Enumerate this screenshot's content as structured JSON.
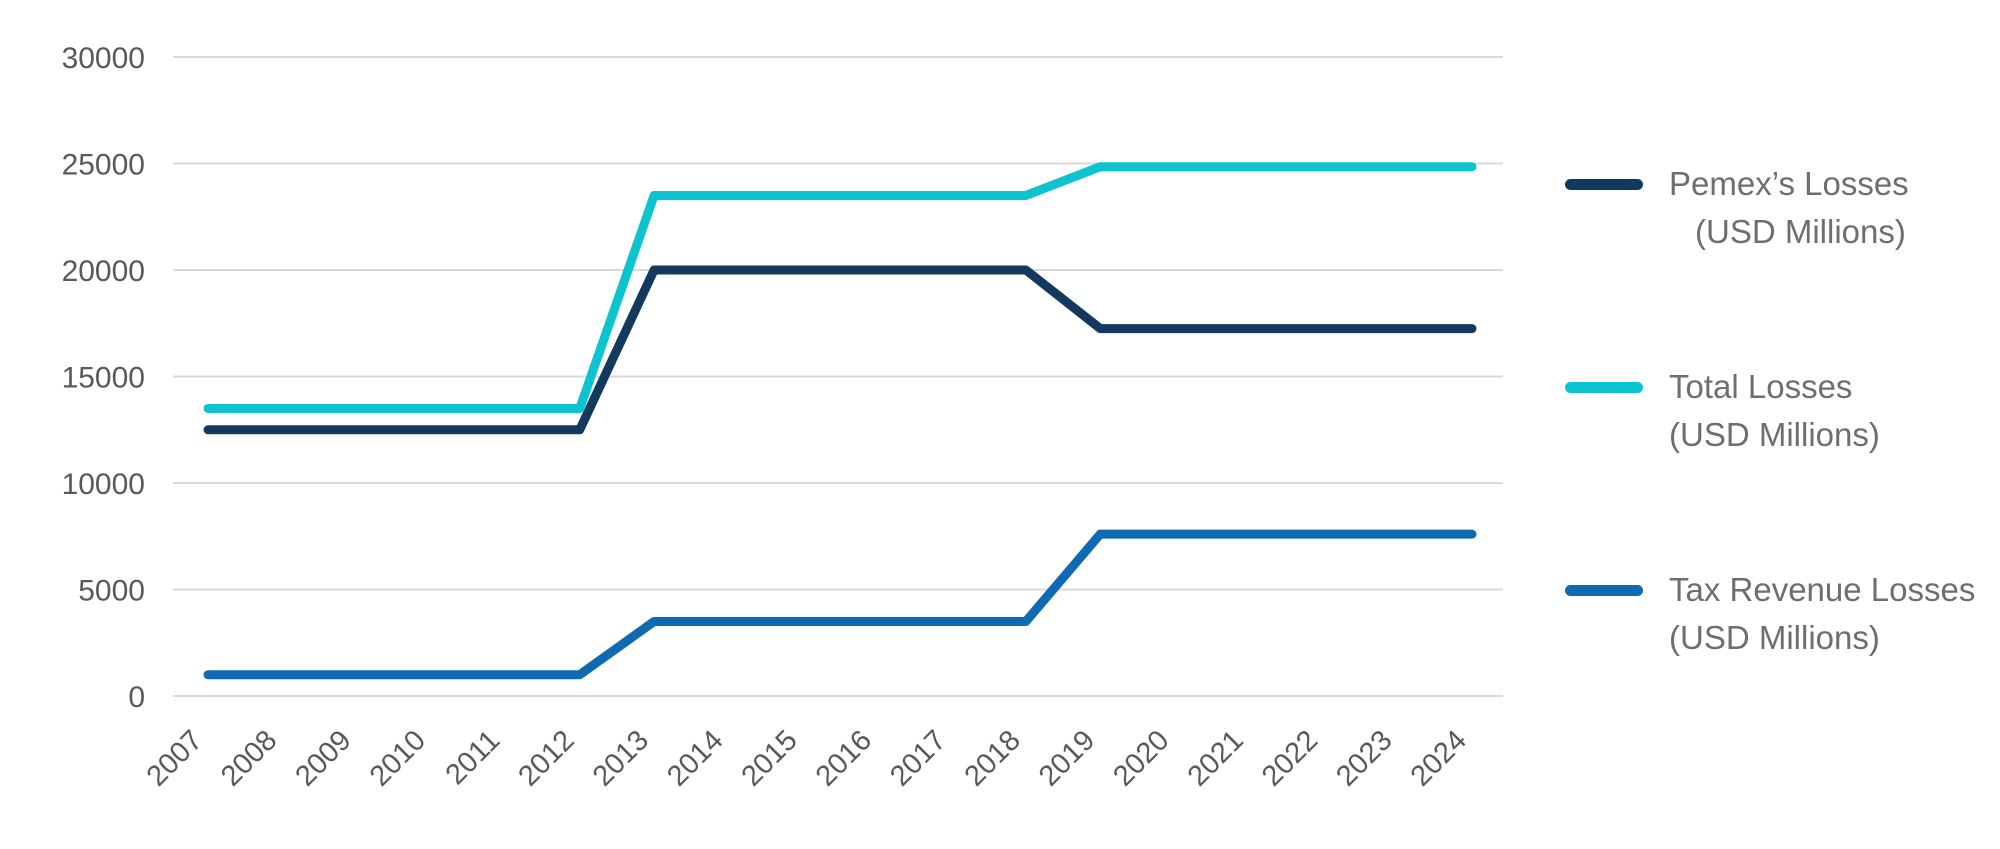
{
  "chart_data": {
    "type": "line",
    "x_categories": [
      "2007",
      "2008",
      "2009",
      "2010",
      "2011",
      "2012",
      "2013",
      "2014",
      "2015",
      "2016",
      "2017",
      "2018",
      "2019",
      "2020",
      "2021",
      "2022",
      "2023",
      "2024"
    ],
    "y_ticks": [
      0,
      5000,
      10000,
      15000,
      20000,
      25000,
      30000
    ],
    "y_tick_labels": [
      "0",
      "5000",
      "10000",
      "15000",
      "20000",
      "25000",
      "30000"
    ],
    "ylim": [
      0,
      30000
    ],
    "grid": true,
    "legend_position": "right",
    "series": [
      {
        "name": "Pemex’s Losses (USD Millions)",
        "legend_lines": [
          "Pemex’s Losses",
          "(USD Millions)"
        ],
        "color": "#13395e",
        "values": [
          12500,
          12500,
          12500,
          12500,
          12500,
          12500,
          20000,
          20000,
          20000,
          20000,
          20000,
          20000,
          17250,
          17250,
          17250,
          17250,
          17250,
          17250
        ]
      },
      {
        "name": "Total Losses (USD Millions)",
        "legend_lines": [
          "Total Losses",
          "(USD Millions)"
        ],
        "color": "#0dc3cf",
        "values": [
          13500,
          13500,
          13500,
          13500,
          13500,
          13500,
          23500,
          23500,
          23500,
          23500,
          23500,
          23500,
          24850,
          24850,
          24850,
          24850,
          24850,
          24850
        ]
      },
      {
        "name": "Tax Revenue Losses (USD Millions)",
        "legend_lines": [
          "Tax Revenue Losses",
          "(USD Millions)"
        ],
        "color": "#106ab2",
        "values": [
          1000,
          1000,
          1000,
          1000,
          1000,
          1000,
          3500,
          3500,
          3500,
          3500,
          3500,
          3500,
          7600,
          7600,
          7600,
          7600,
          7600,
          7600
        ]
      }
    ],
    "colors": {
      "grid": "#d9d9d9",
      "tick_label": "#595959",
      "legend_text": "#6e6e6e",
      "background": "#ffffff"
    }
  }
}
